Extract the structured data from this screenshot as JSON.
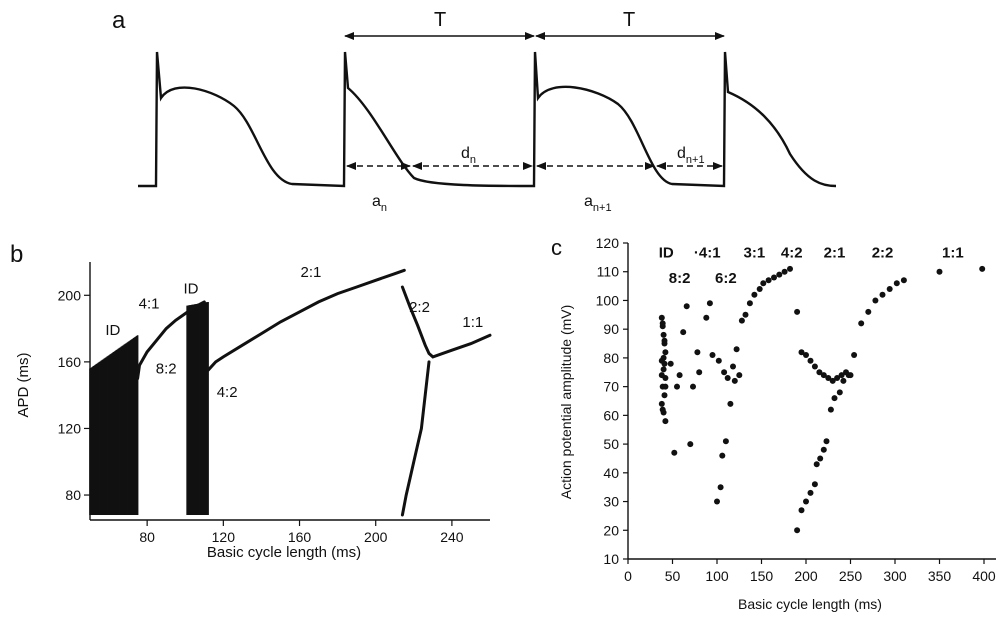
{
  "panels": {
    "a": {
      "label": "a",
      "period_label": "T",
      "apd_labels": [
        {
          "main": "a",
          "sub": "n"
        },
        {
          "main": "a",
          "sub": "n+1"
        }
      ],
      "di_labels": [
        {
          "main": "d",
          "sub": "n"
        },
        {
          "main": "d",
          "sub": "n+1"
        }
      ]
    },
    "b": {
      "label": "b"
    },
    "c": {
      "label": "c"
    }
  },
  "chart_data": [
    {
      "panel": "b",
      "type": "scatter",
      "xlabel": "Basic cycle length (ms)",
      "ylabel": "APD (ms)",
      "xlim": [
        50,
        260
      ],
      "ylim": [
        65,
        220
      ],
      "xticks": [
        80,
        120,
        160,
        200,
        240
      ],
      "yticks": [
        80,
        120,
        160,
        200
      ],
      "grid": false,
      "annotations": [
        {
          "text": "ID",
          "x": 62,
          "y": 176
        },
        {
          "text": "4:1",
          "x": 81,
          "y": 192
        },
        {
          "text": "8:2",
          "x": 90,
          "y": 153
        },
        {
          "text": "ID",
          "x": 103,
          "y": 201
        },
        {
          "text": "4:2",
          "x": 122,
          "y": 139
        },
        {
          "text": "2:1",
          "x": 166,
          "y": 211
        },
        {
          "text": "2:2",
          "x": 223,
          "y": 190
        },
        {
          "text": "1:1",
          "x": 251,
          "y": 181
        }
      ],
      "series": [
        {
          "values": "chaotic-band",
          "x": [
            50,
            75
          ],
          "y": [
            68,
            176
          ]
        },
        {
          "values": "chaotic-band",
          "x": [
            101,
            112
          ],
          "y": [
            68,
            196
          ]
        },
        {
          "x": [
            75,
            76,
            80,
            85,
            90,
            95,
            100,
            105,
            110
          ],
          "y": [
            150,
            158,
            166,
            173,
            180,
            185,
            189,
            193,
            196
          ]
        },
        {
          "x": [
            112,
            116,
            120,
            130,
            140,
            150,
            160,
            170,
            180,
            190,
            200,
            210,
            215
          ],
          "y": [
            155,
            160,
            163,
            170,
            177,
            184,
            190,
            196,
            201,
            205,
            209,
            213,
            215
          ]
        },
        {
          "x": [
            214,
            218,
            222,
            226,
            228,
            230,
            240,
            250,
            260
          ],
          "y": [
            205,
            193,
            182,
            170,
            165,
            163,
            167,
            171,
            176
          ]
        },
        {
          "x": [
            228,
            227,
            226,
            225,
            224,
            222,
            220,
            218,
            216,
            214
          ],
          "y": [
            160,
            150,
            140,
            130,
            120,
            110,
            100,
            90,
            80,
            68
          ]
        }
      ]
    },
    {
      "panel": "c",
      "type": "scatter",
      "xlabel": "Basic cycle length (ms)",
      "ylabel": "Action potential amplitude (mV)",
      "xlim": [
        0,
        410
      ],
      "ylim": [
        10,
        120
      ],
      "xticks": [
        0,
        50,
        100,
        150,
        200,
        250,
        300,
        350,
        400
      ],
      "yticks": [
        10,
        20,
        30,
        40,
        50,
        60,
        70,
        80,
        90,
        100,
        110,
        120
      ],
      "grid": false,
      "annotations": [
        {
          "text": "ID",
          "x": 43,
          "y": 115
        },
        {
          "text": "·4:1",
          "x": 89,
          "y": 115
        },
        {
          "text": "3:1",
          "x": 142,
          "y": 115
        },
        {
          "text": "4:2",
          "x": 184,
          "y": 115
        },
        {
          "text": "2:1",
          "x": 232,
          "y": 115
        },
        {
          "text": "2:2",
          "x": 286,
          "y": 115
        },
        {
          "text": "1:1",
          "x": 365,
          "y": 115
        },
        {
          "text": "8:2",
          "x": 58,
          "y": 106
        },
        {
          "text": "6:2",
          "x": 110,
          "y": 106
        }
      ],
      "points": [
        [
          38,
          94
        ],
        [
          39,
          91
        ],
        [
          40,
          88
        ],
        [
          41,
          85
        ],
        [
          42,
          82
        ],
        [
          38,
          79
        ],
        [
          40,
          76
        ],
        [
          42,
          73
        ],
        [
          39,
          70
        ],
        [
          41,
          67
        ],
        [
          38,
          64
        ],
        [
          40,
          61
        ],
        [
          42,
          58
        ],
        [
          39,
          92
        ],
        [
          41,
          86
        ],
        [
          40,
          80
        ],
        [
          38,
          74
        ],
        [
          42,
          70
        ],
        [
          39,
          62
        ],
        [
          41,
          78
        ],
        [
          48,
          78
        ],
        [
          52,
          47
        ],
        [
          55,
          70
        ],
        [
          58,
          74
        ],
        [
          62,
          89
        ],
        [
          66,
          98
        ],
        [
          70,
          50
        ],
        [
          73,
          70
        ],
        [
          78,
          82
        ],
        [
          80,
          75
        ],
        [
          88,
          94
        ],
        [
          92,
          99
        ],
        [
          95,
          81
        ],
        [
          100,
          30
        ],
        [
          102,
          79
        ],
        [
          104,
          35
        ],
        [
          106,
          46
        ],
        [
          108,
          75
        ],
        [
          110,
          51
        ],
        [
          112,
          73
        ],
        [
          115,
          64
        ],
        [
          118,
          77
        ],
        [
          120,
          72
        ],
        [
          122,
          83
        ],
        [
          125,
          74
        ],
        [
          128,
          93
        ],
        [
          132,
          95
        ],
        [
          137,
          99
        ],
        [
          142,
          102
        ],
        [
          148,
          104
        ],
        [
          152,
          106
        ],
        [
          158,
          107
        ],
        [
          164,
          108
        ],
        [
          170,
          109
        ],
        [
          176,
          110
        ],
        [
          182,
          111
        ],
        [
          190,
          96
        ],
        [
          190,
          20
        ],
        [
          195,
          27
        ],
        [
          200,
          30
        ],
        [
          205,
          33
        ],
        [
          210,
          36
        ],
        [
          212,
          43
        ],
        [
          216,
          45
        ],
        [
          220,
          48
        ],
        [
          223,
          51
        ],
        [
          228,
          62
        ],
        [
          232,
          66
        ],
        [
          238,
          68
        ],
        [
          242,
          72
        ],
        [
          248,
          74
        ],
        [
          254,
          81
        ],
        [
          195,
          82
        ],
        [
          200,
          81
        ],
        [
          205,
          79
        ],
        [
          210,
          77
        ],
        [
          215,
          75
        ],
        [
          220,
          74
        ],
        [
          225,
          73
        ],
        [
          230,
          72
        ],
        [
          235,
          73
        ],
        [
          240,
          74
        ],
        [
          245,
          75
        ],
        [
          250,
          74
        ],
        [
          262,
          92
        ],
        [
          270,
          96
        ],
        [
          278,
          100
        ],
        [
          286,
          102
        ],
        [
          294,
          104
        ],
        [
          302,
          106
        ],
        [
          310,
          107
        ],
        [
          350,
          110
        ],
        [
          398,
          111
        ]
      ]
    }
  ]
}
